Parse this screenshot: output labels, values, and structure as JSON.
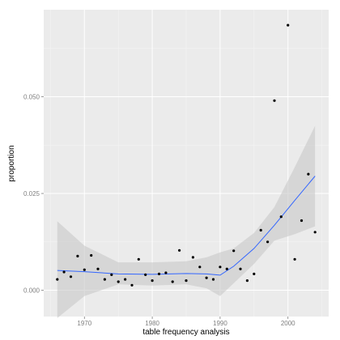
{
  "chart_data": {
    "type": "scatter",
    "xlabel": "table frequency analysis",
    "ylabel": "proportion",
    "xlim": [
      1964,
      2006
    ],
    "ylim": [
      -0.0068,
      0.0725
    ],
    "x_ticks": [
      1970,
      1980,
      1990,
      2000
    ],
    "y_ticks": [
      0.0,
      0.025,
      0.05
    ],
    "x_tick_labels": [
      "1970",
      "1980",
      "1990",
      "2000"
    ],
    "y_tick_labels": [
      "0.000",
      "0.025",
      "0.050"
    ],
    "grid": true,
    "colors": {
      "panel": "#ebebeb",
      "grid_major": "#ffffff",
      "grid_minor": "#f5f5f5",
      "points": "#000000",
      "smooth_line": "#3366ff",
      "confidence_band": "#c8c8c8"
    },
    "points": [
      {
        "x": 1966,
        "y": 0.0028
      },
      {
        "x": 1967,
        "y": 0.0047
      },
      {
        "x": 1968,
        "y": 0.0035
      },
      {
        "x": 1969,
        "y": 0.0088
      },
      {
        "x": 1970,
        "y": 0.0053
      },
      {
        "x": 1971,
        "y": 0.009
      },
      {
        "x": 1972,
        "y": 0.0055
      },
      {
        "x": 1973,
        "y": 0.0028
      },
      {
        "x": 1974,
        "y": 0.004
      },
      {
        "x": 1975,
        "y": 0.0022
      },
      {
        "x": 1976,
        "y": 0.0028
      },
      {
        "x": 1977,
        "y": 0.0013
      },
      {
        "x": 1978,
        "y": 0.008
      },
      {
        "x": 1979,
        "y": 0.004
      },
      {
        "x": 1980,
        "y": 0.0025
      },
      {
        "x": 1981,
        "y": 0.0042
      },
      {
        "x": 1982,
        "y": 0.0045
      },
      {
        "x": 1983,
        "y": 0.0022
      },
      {
        "x": 1984,
        "y": 0.0103
      },
      {
        "x": 1985,
        "y": 0.0025
      },
      {
        "x": 1986,
        "y": 0.0085
      },
      {
        "x": 1987,
        "y": 0.006
      },
      {
        "x": 1988,
        "y": 0.0032
      },
      {
        "x": 1989,
        "y": 0.0028
      },
      {
        "x": 1990,
        "y": 0.006
      },
      {
        "x": 1991,
        "y": 0.0055
      },
      {
        "x": 1992,
        "y": 0.0102
      },
      {
        "x": 1993,
        "y": 0.0055
      },
      {
        "x": 1994,
        "y": 0.0025
      },
      {
        "x": 1995,
        "y": 0.0042
      },
      {
        "x": 1996,
        "y": 0.0155
      },
      {
        "x": 1997,
        "y": 0.0125
      },
      {
        "x": 1998,
        "y": 0.049
      },
      {
        "x": 1999,
        "y": 0.019
      },
      {
        "x": 2000,
        "y": 0.0685
      },
      {
        "x": 2001,
        "y": 0.008
      },
      {
        "x": 2002,
        "y": 0.018
      },
      {
        "x": 2003,
        "y": 0.03
      },
      {
        "x": 2004,
        "y": 0.015
      }
    ],
    "smooth": {
      "method": "loess",
      "x": [
        1966,
        1970,
        1975,
        1980,
        1985,
        1988,
        1990,
        1992,
        1995,
        1998,
        2001,
        2004
      ],
      "y": [
        0.0051,
        0.0048,
        0.0042,
        0.0041,
        0.0043,
        0.0042,
        0.0039,
        0.0062,
        0.0108,
        0.0168,
        0.0232,
        0.0295
      ],
      "lower": [
        -0.0072,
        -0.0015,
        0.0015,
        0.0012,
        0.0015,
        0.0005,
        -0.0015,
        0.0018,
        0.0068,
        0.0128,
        0.0145,
        0.0165
      ],
      "upper": [
        0.0178,
        0.0115,
        0.0072,
        0.0072,
        0.0075,
        0.0085,
        0.0098,
        0.0108,
        0.0148,
        0.0215,
        0.0318,
        0.0425
      ]
    }
  }
}
